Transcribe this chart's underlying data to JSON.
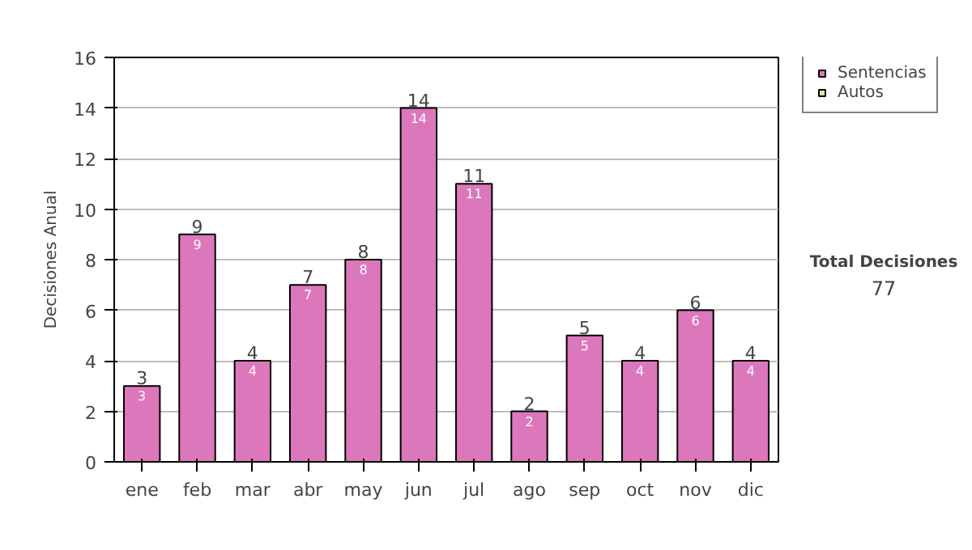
{
  "chart_data": {
    "type": "bar",
    "ylabel": "Decisiones Anual",
    "categories": [
      "ene",
      "feb",
      "mar",
      "abr",
      "may",
      "jun",
      "jul",
      "ago",
      "sep",
      "oct",
      "nov",
      "dic"
    ],
    "series": [
      {
        "name": "Sentencias",
        "color": "#dd77bb",
        "values": [
          3,
          9,
          4,
          7,
          8,
          14,
          11,
          2,
          5,
          4,
          6,
          4
        ]
      },
      {
        "name": "Autos",
        "color": "#ccee99",
        "values": [
          null,
          null,
          null,
          null,
          null,
          null,
          null,
          null,
          null,
          null,
          null,
          null
        ]
      }
    ],
    "stacked": true,
    "ylim": [
      0,
      16
    ],
    "yticks": [
      0,
      2,
      4,
      6,
      8,
      10,
      12,
      14,
      16
    ],
    "grid": "y",
    "legend": "right",
    "data_labels": true,
    "totals": [
      "3",
      "9",
      "4",
      "7",
      "8",
      "14",
      "11",
      "2",
      "5",
      "4",
      "6",
      "4"
    ],
    "annotations": [
      "Total Decisiones",
      "77"
    ]
  }
}
